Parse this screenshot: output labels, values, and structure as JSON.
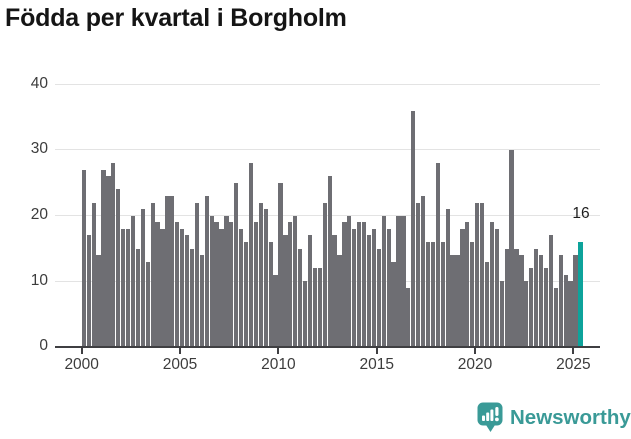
{
  "title": "Födda per kvartal i Borgholm",
  "footer": {
    "brand": "Newsworthy"
  },
  "colors": {
    "bar": "#6e6e73",
    "highlight": "#0da39b",
    "brand": "#3a9a97",
    "title_text": "#151515",
    "axis_text": "#3c3c3c",
    "gridline": "#e3e3e3",
    "axis_line": "#3f3f42",
    "background": "#ffffff"
  },
  "chart_data": {
    "type": "bar",
    "title": "Födda per kvartal i Borgholm",
    "xlabel": "",
    "ylabel": "",
    "ylim": [
      0,
      40
    ],
    "y_ticks": [
      0,
      10,
      20,
      30,
      40
    ],
    "x_tick_labels": [
      "2000",
      "2005",
      "2010",
      "2015",
      "2020",
      "2025"
    ],
    "grid": "horizontal",
    "legend": "none",
    "start_period": "2000-Q1",
    "end_period": "2025-Q2",
    "periods_per_year": 4,
    "values": [
      27,
      17,
      22,
      14,
      27,
      26,
      28,
      24,
      18,
      18,
      20,
      15,
      21,
      13,
      22,
      19,
      18,
      23,
      23,
      19,
      18,
      17,
      15,
      22,
      14,
      23,
      20,
      19,
      18,
      20,
      19,
      25,
      18,
      16,
      28,
      19,
      22,
      21,
      16,
      11,
      25,
      17,
      19,
      20,
      15,
      10,
      17,
      12,
      12,
      22,
      26,
      17,
      14,
      19,
      20,
      18,
      19,
      19,
      17,
      18,
      15,
      20,
      18,
      13,
      20,
      20,
      9,
      36,
      22,
      23,
      16,
      16,
      28,
      16,
      21,
      14,
      14,
      18,
      19,
      16,
      22,
      22,
      13,
      19,
      18,
      10,
      15,
      30,
      15,
      14,
      10,
      12,
      15,
      14,
      12,
      17,
      9,
      14,
      11,
      10,
      14,
      16
    ],
    "highlight_index": 101,
    "annotation_label": "16"
  }
}
